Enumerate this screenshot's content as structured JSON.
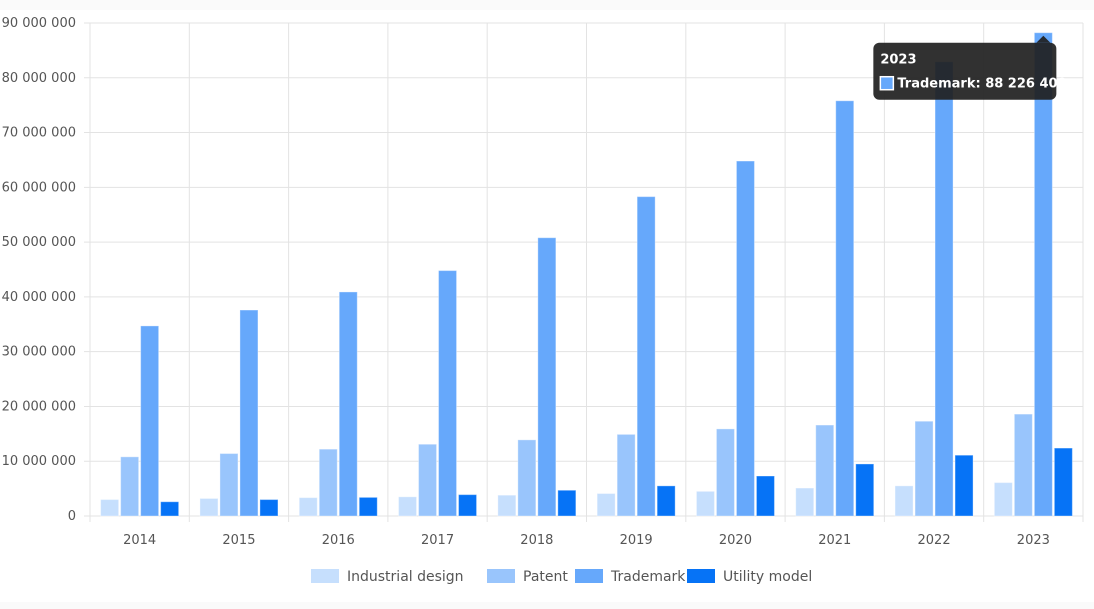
{
  "colors": {
    "grid": "#e3e3e3",
    "tooltip_bg": "#1f1f1f"
  },
  "chart_data": {
    "type": "bar",
    "categories": [
      "2014",
      "2015",
      "2016",
      "2017",
      "2018",
      "2019",
      "2020",
      "2021",
      "2022",
      "2023"
    ],
    "series": [
      {
        "name": "Industrial design",
        "color": "#c6dffd",
        "values": [
          3000000,
          3200000,
          3350000,
          3500000,
          3800000,
          4100000,
          4500000,
          5100000,
          5500000,
          6100000
        ]
      },
      {
        "name": "Patent",
        "color": "#99c5fc",
        "values": [
          10800000,
          11400000,
          12200000,
          13100000,
          13900000,
          14900000,
          15900000,
          16600000,
          17300000,
          18600000
        ]
      },
      {
        "name": "Trademark",
        "color": "#66a8fb",
        "values": [
          34700000,
          37600000,
          40900000,
          44800000,
          50800000,
          58300000,
          64800000,
          75800000,
          82900000,
          88226400
        ]
      },
      {
        "name": "Utility model",
        "color": "#0673f6",
        "values": [
          2600000,
          3000000,
          3400000,
          3900000,
          4700000,
          5500000,
          7300000,
          9500000,
          11100000,
          12400000
        ]
      }
    ],
    "y_ticks": [
      "0",
      "10 000 000",
      "20 000 000",
      "30 000 000",
      "40 000 000",
      "50 000 000",
      "60 000 000",
      "70 000 000",
      "80 000 000",
      "90 000 000"
    ],
    "ylim": [
      0,
      90000000
    ],
    "grid": true,
    "legend_position": "bottom-center",
    "tooltip": {
      "title": "2023",
      "text": "Trademark: 88 226 400",
      "category_index": 9,
      "series_index": 2
    }
  }
}
